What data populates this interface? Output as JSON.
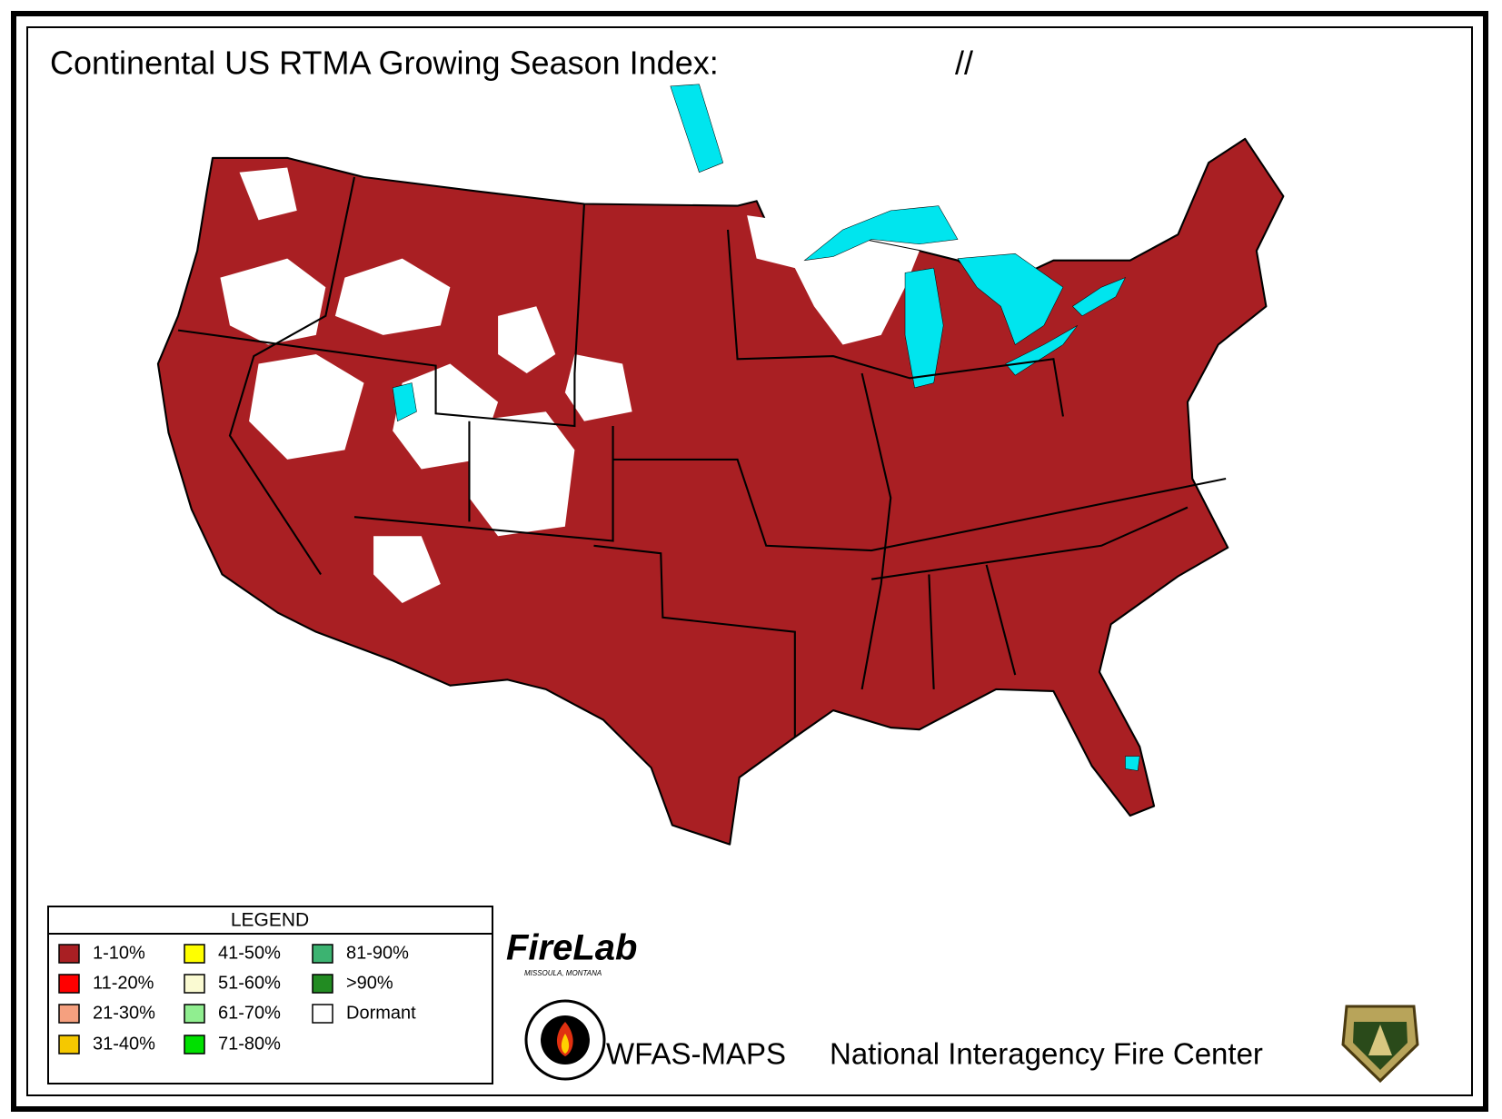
{
  "header": {
    "title": "Continental US RTMA Growing Season Index:",
    "date": "//"
  },
  "legend": {
    "title": "LEGEND",
    "items": [
      {
        "label": "1-10%",
        "color": "#a91f23"
      },
      {
        "label": "11-20%",
        "color": "#ff0000"
      },
      {
        "label": "21-30%",
        "color": "#f5a07f"
      },
      {
        "label": "31-40%",
        "color": "#f5c800"
      },
      {
        "label": "41-50%",
        "color": "#ffff00"
      },
      {
        "label": "51-60%",
        "color": "#fafad2"
      },
      {
        "label": "61-70%",
        "color": "#90ee90"
      },
      {
        "label": "71-80%",
        "color": "#00e000"
      },
      {
        "label": "81-90%",
        "color": "#3cb371"
      },
      {
        "label": ">90%",
        "color": "#228b22"
      },
      {
        "label": "Dormant",
        "color": "#ffffff"
      }
    ]
  },
  "footer": {
    "firelab": "FireLab",
    "firelab_location": "MISSOULA, MONTANA",
    "wfas": "WFAS-MAPS",
    "nifc": "National Interagency Fire Center"
  }
}
